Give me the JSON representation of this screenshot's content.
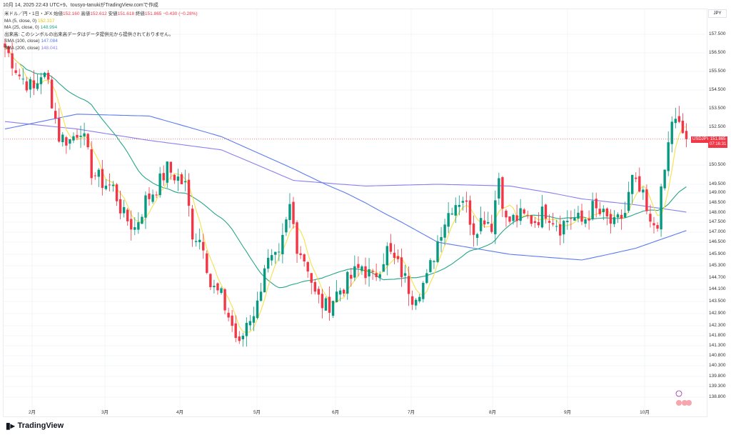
{
  "header": {
    "timestamp": "10月 14, 2025 22:43 UTC+9、tousyo-tanukiがTradingView.comで作成"
  },
  "legend": {
    "symbol": "米ドル／円・1日・JFX",
    "open_label": "始値",
    "open": "152.160",
    "high_label": "高値",
    "high": "152.612",
    "low_label": "安値",
    "low": "151.618",
    "close_label": "終値",
    "close": "151.865",
    "change": "−0.430 (−0.28%)",
    "ma5_label": "MA (5, close, 0)",
    "ma5": "152.317",
    "ma25_label": "MA (25, close, 0)",
    "ma25": "148.994",
    "volume_note": "出来高: このシンボルの出来高データはデータ提供元から提供されておりません。",
    "sma100_label": "SMA (100, close)",
    "sma100": "147.084",
    "sma200_label": "SMA (200, close)",
    "sma200": "148.041"
  },
  "axis": {
    "currency": "JPY",
    "price_ticks": [
      "157.500",
      "156.500",
      "155.500",
      "154.500",
      "153.500",
      "152.500",
      "150.500",
      "149.500",
      "149.000",
      "148.500",
      "148.000",
      "147.500",
      "147.000",
      "146.500",
      "145.900",
      "145.300",
      "144.700",
      "144.100",
      "143.500",
      "142.900",
      "142.300",
      "141.800",
      "141.300",
      "140.800",
      "140.300",
      "139.800",
      "139.300",
      "138.800"
    ],
    "months": [
      "2月",
      "3月",
      "4月",
      "5月",
      "6月",
      "7月",
      "8月",
      "9月",
      "10月"
    ]
  },
  "price_tag": {
    "symbol": "USDJPY",
    "price": "151.865",
    "countdown": "07:16:31"
  },
  "colors": {
    "up": "#089981",
    "down": "#f23645",
    "ma5": "#f7e14a",
    "ma25": "#26a688",
    "sma100": "#5b7cf0",
    "sma200": "#8a7ef0"
  },
  "brand": "TradingView",
  "chart_data": {
    "type": "candlestick",
    "title": "USDJPY 1D",
    "close_keypoints": [
      [
        0,
        156.8
      ],
      [
        4,
        155.3
      ],
      [
        8,
        154.5
      ],
      [
        10,
        155.4
      ],
      [
        12,
        154.9
      ],
      [
        15,
        152
      ],
      [
        18,
        151.8
      ],
      [
        21,
        152.5
      ],
      [
        24,
        150.2
      ],
      [
        27,
        149.6
      ],
      [
        30,
        149.3
      ],
      [
        33,
        147.8
      ],
      [
        36,
        147.2
      ],
      [
        39,
        148.6
      ],
      [
        42,
        149.3
      ],
      [
        45,
        150.3
      ],
      [
        48,
        149.8
      ],
      [
        50,
        149.4
      ],
      [
        52,
        147
      ],
      [
        55,
        146.5
      ],
      [
        57,
        144.3
      ],
      [
        60,
        143.7
      ],
      [
        63,
        142.3
      ],
      [
        65,
        141.2
      ],
      [
        67,
        142.5
      ],
      [
        70,
        143.3
      ],
      [
        72,
        145.4
      ],
      [
        76,
        145.6
      ],
      [
        79,
        148.3
      ],
      [
        81,
        146.4
      ],
      [
        84,
        145.3
      ],
      [
        86,
        143.8
      ],
      [
        89,
        143.2
      ],
      [
        92,
        143.9
      ],
      [
        96,
        144.7
      ],
      [
        99,
        145.3
      ],
      [
        102,
        144.6
      ],
      [
        106,
        146.1
      ],
      [
        110,
        145
      ],
      [
        113,
        143.8
      ],
      [
        117,
        144.6
      ],
      [
        121,
        147.2
      ],
      [
        124,
        148.4
      ],
      [
        127,
        148.8
      ],
      [
        130,
        147.2
      ],
      [
        133,
        147.8
      ],
      [
        135,
        147.4
      ],
      [
        137,
        149.9
      ],
      [
        139,
        147.5
      ],
      [
        143,
        147.8
      ],
      [
        147,
        147.6
      ],
      [
        150,
        148.1
      ],
      [
        154,
        147.3
      ],
      [
        157,
        147.8
      ],
      [
        160,
        147.5
      ],
      [
        163,
        148.2
      ],
      [
        166,
        147.8
      ],
      [
        169,
        147.3
      ],
      [
        172,
        148
      ],
      [
        174,
        149.7
      ],
      [
        177,
        148.7
      ],
      [
        179,
        147.2
      ],
      [
        181,
        147.6
      ],
      [
        183,
        150.2
      ],
      [
        185,
        152.9
      ],
      [
        187,
        152.5
      ],
      [
        189,
        151.87
      ]
    ],
    "sma100_keypoints": [
      [
        0,
        152.4
      ],
      [
        20,
        153.2
      ],
      [
        40,
        153.1
      ],
      [
        60,
        152
      ],
      [
        80,
        150.3
      ],
      [
        100,
        148.5
      ],
      [
        120,
        146.5
      ],
      [
        140,
        145.9
      ],
      [
        160,
        145.6
      ],
      [
        175,
        146.2
      ],
      [
        189,
        147.08
      ]
    ],
    "sma200_keypoints": [
      [
        0,
        152.8
      ],
      [
        20,
        152.4
      ],
      [
        40,
        151.8
      ],
      [
        60,
        151.3
      ],
      [
        80,
        149.7
      ],
      [
        100,
        149.4
      ],
      [
        120,
        149.5
      ],
      [
        140,
        149.4
      ],
      [
        160,
        148.7
      ],
      [
        175,
        148.4
      ],
      [
        189,
        148.04
      ]
    ]
  }
}
